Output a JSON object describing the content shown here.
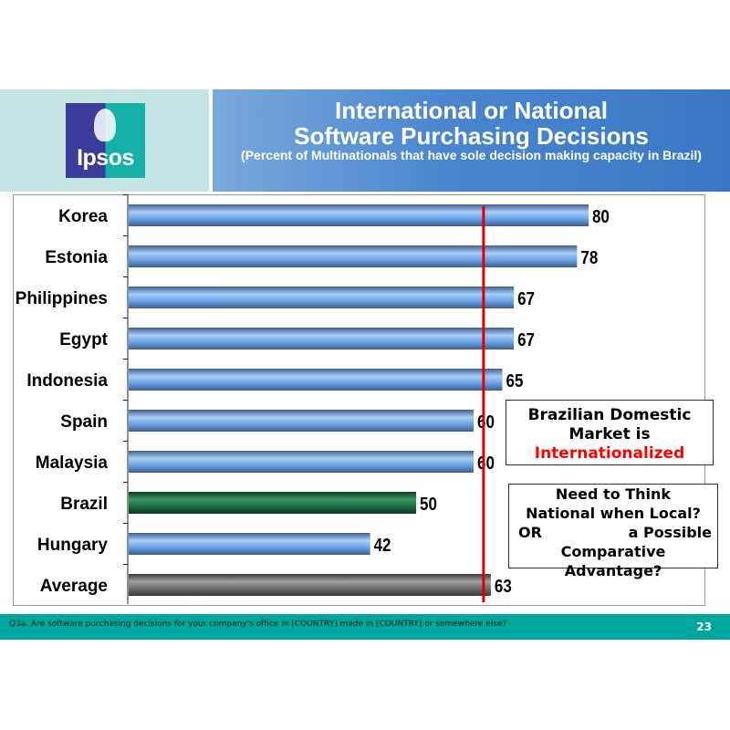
{
  "header": {
    "logo_text": "Ipsos",
    "title_line1": "International or National",
    "title_line2": "Software Purchasing Decisions",
    "subtitle": "(Percent of Multinationals that have sole decision making capacity in Brazil)"
  },
  "callout_top": {
    "line1": "Brazilian Domestic",
    "line2": "Market is",
    "line3": "Internationalized"
  },
  "callout_bottom": {
    "line1": "Need to Think",
    "line2": "National when Local?",
    "or_word": "OR",
    "or_rest": "a Possible",
    "line4": "Comparative",
    "line5": "Advantage?"
  },
  "footer": {
    "footnote": "Q3a. Are software purchasing decisions for your company's office in [COUNTRY] made in [COUNTRY] or somewhere else?",
    "page_number": "23"
  },
  "colors": {
    "bar_default": "#6aa6e8",
    "bar_highlight": "#1e6b42",
    "bar_average": "#6d6d6d",
    "reference_line": "#e00000"
  },
  "chart_data": {
    "type": "bar",
    "orientation": "horizontal",
    "categories": [
      "Korea",
      "Estonia",
      "Philippines",
      "Egypt",
      "Indonesia",
      "Spain",
      "Malaysia",
      "Brazil",
      "Hungary",
      "Average"
    ],
    "values": [
      80,
      78,
      67,
      67,
      65,
      60,
      60,
      50,
      42,
      63
    ],
    "highlight": {
      "Brazil": "bar_highlight",
      "Average": "bar_average"
    },
    "reference_line": 63,
    "xlim": [
      0,
      100
    ],
    "grid": false,
    "data_labels": true
  }
}
